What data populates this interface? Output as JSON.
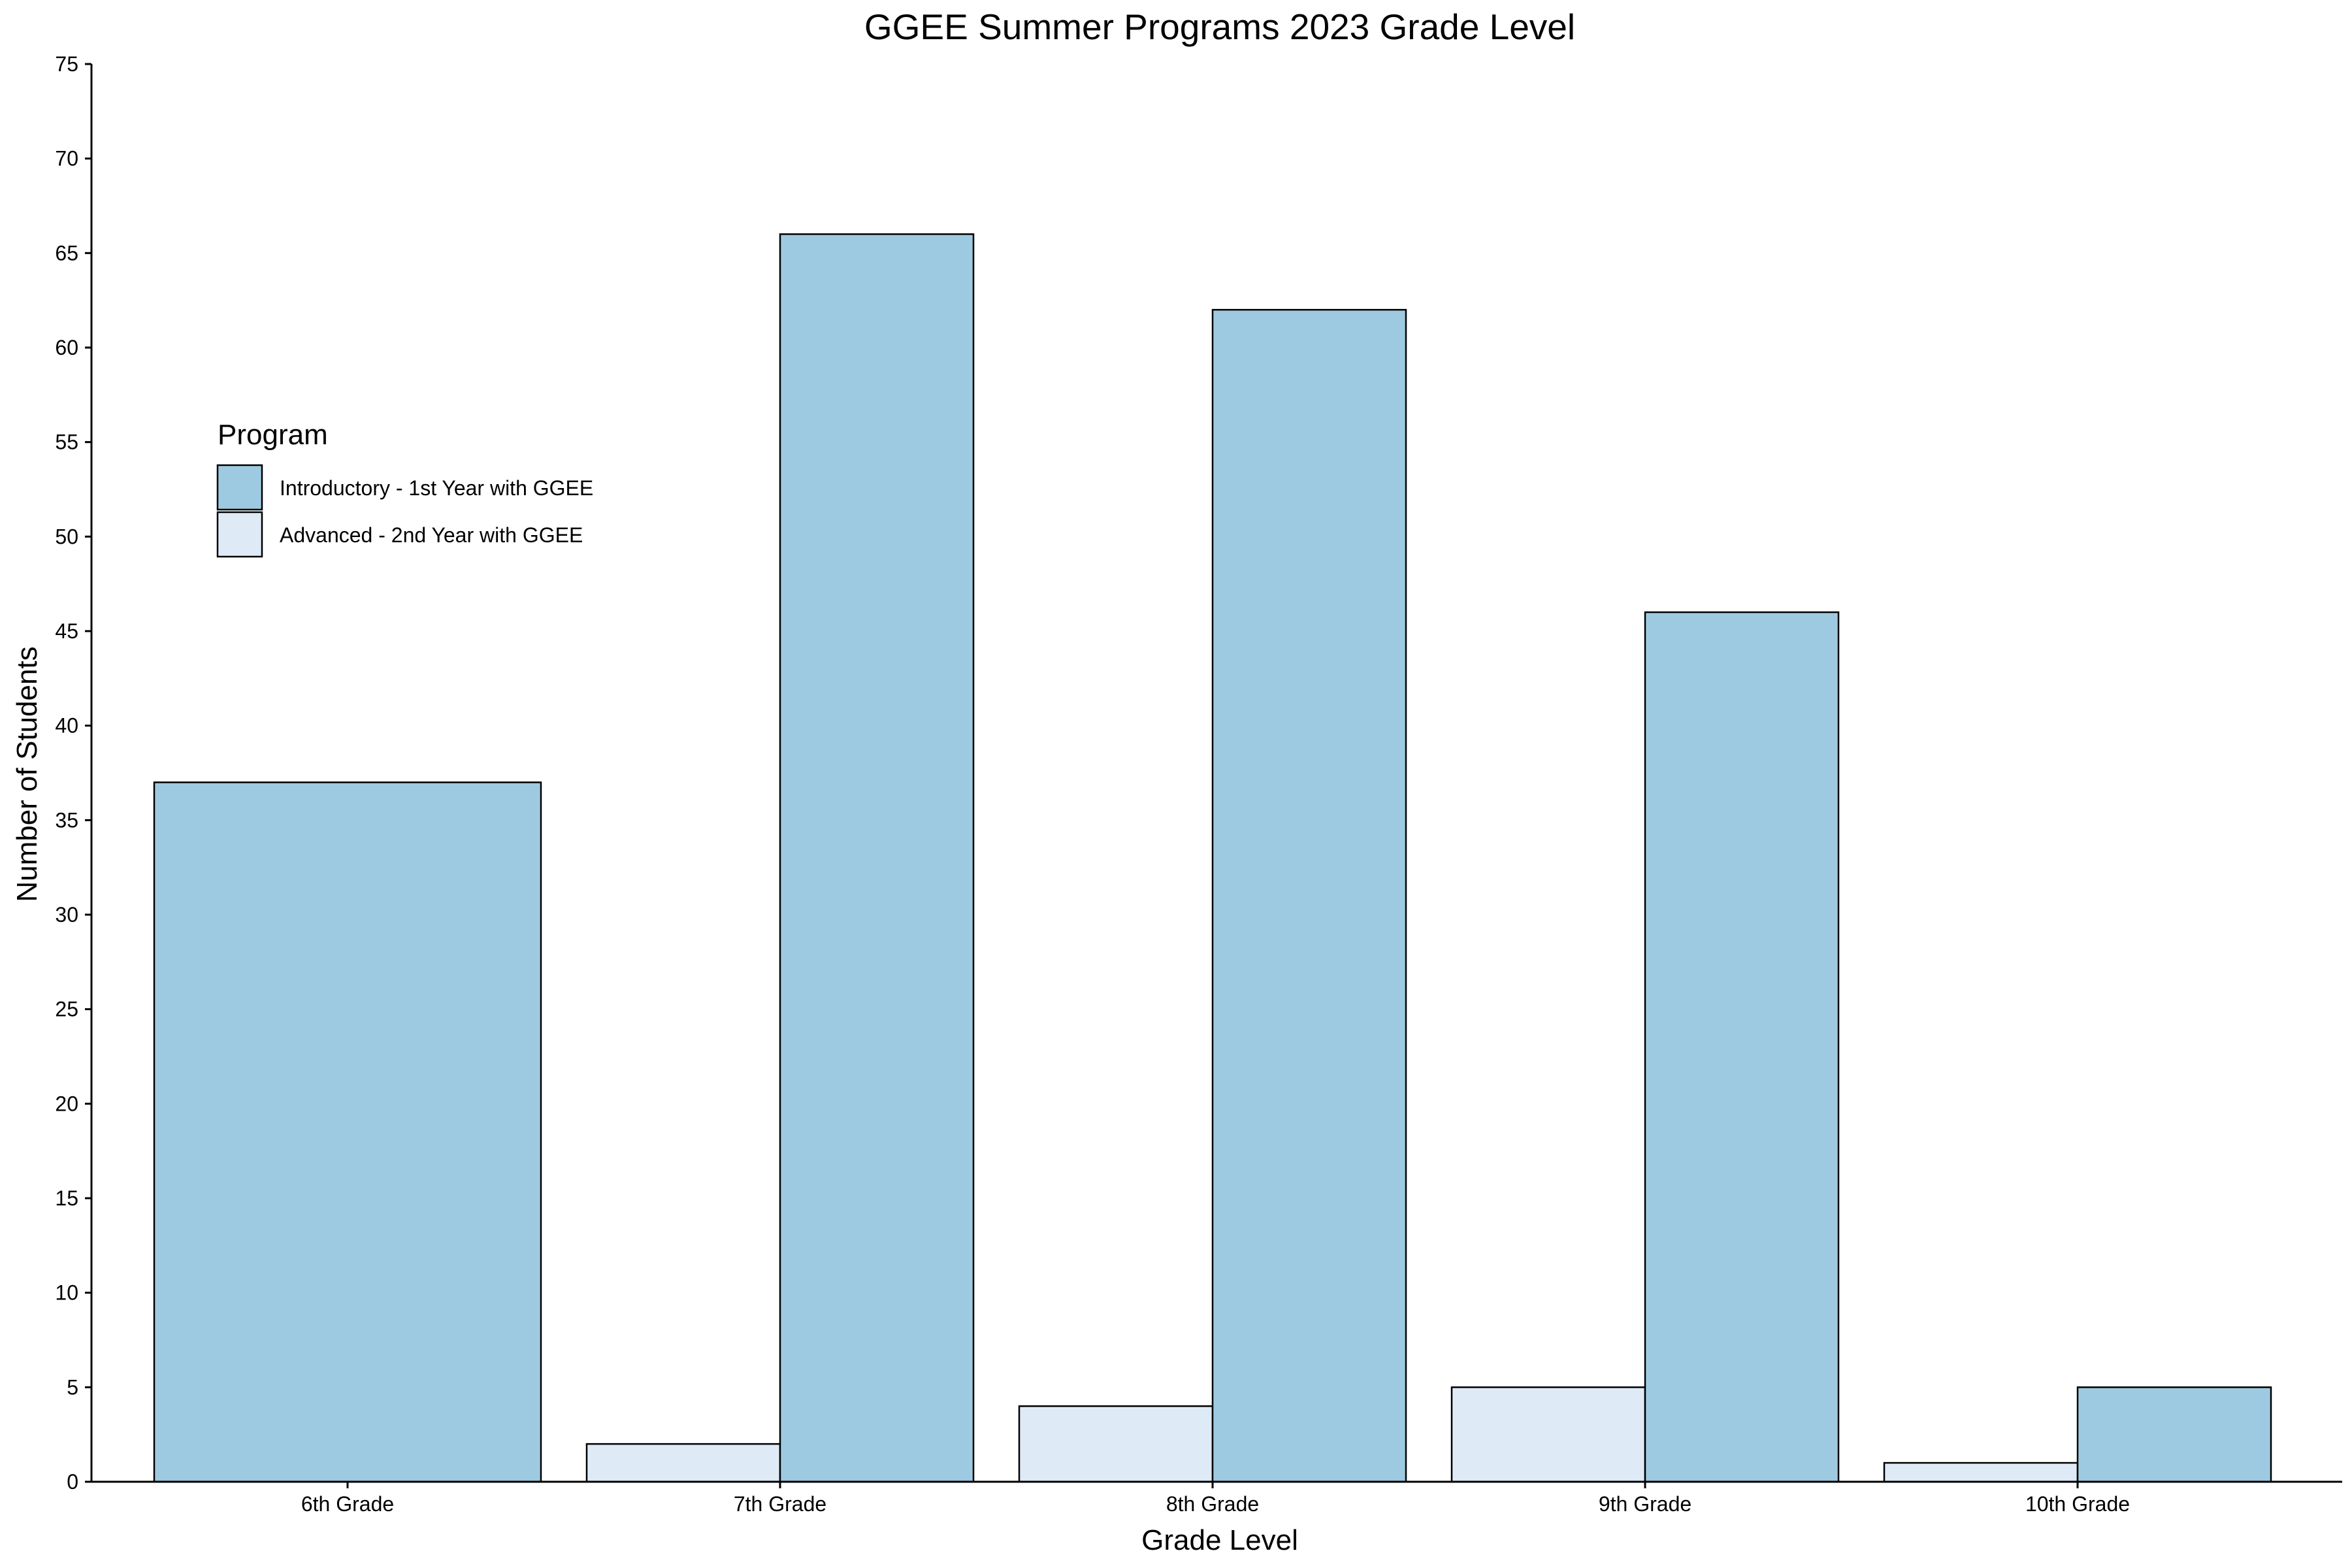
{
  "chart_data": {
    "type": "bar",
    "title": "GGEE Summer Programs 2023 Grade Level",
    "xlabel": "Grade Level",
    "ylabel": "Number of Students",
    "categories": [
      "6th Grade",
      "7th Grade",
      "8th Grade",
      "9th Grade",
      "10th Grade"
    ],
    "ylim": [
      0,
      75
    ],
    "yticks": [
      0,
      5,
      10,
      15,
      20,
      25,
      30,
      35,
      40,
      45,
      50,
      55,
      60,
      65,
      70,
      75
    ],
    "grid": false,
    "legend": {
      "title": "Program",
      "placement": "top-left"
    },
    "series": [
      {
        "name": "Advanced - 2nd Year with GGEE",
        "color": "#deebf7",
        "values": [
          null,
          2,
          4,
          5,
          1
        ]
      },
      {
        "name": "Introductory - 1st Year with GGEE",
        "color": "#9ecae1",
        "values": [
          37,
          66,
          62,
          46,
          5
        ]
      }
    ],
    "legend_order": [
      1,
      0
    ]
  }
}
